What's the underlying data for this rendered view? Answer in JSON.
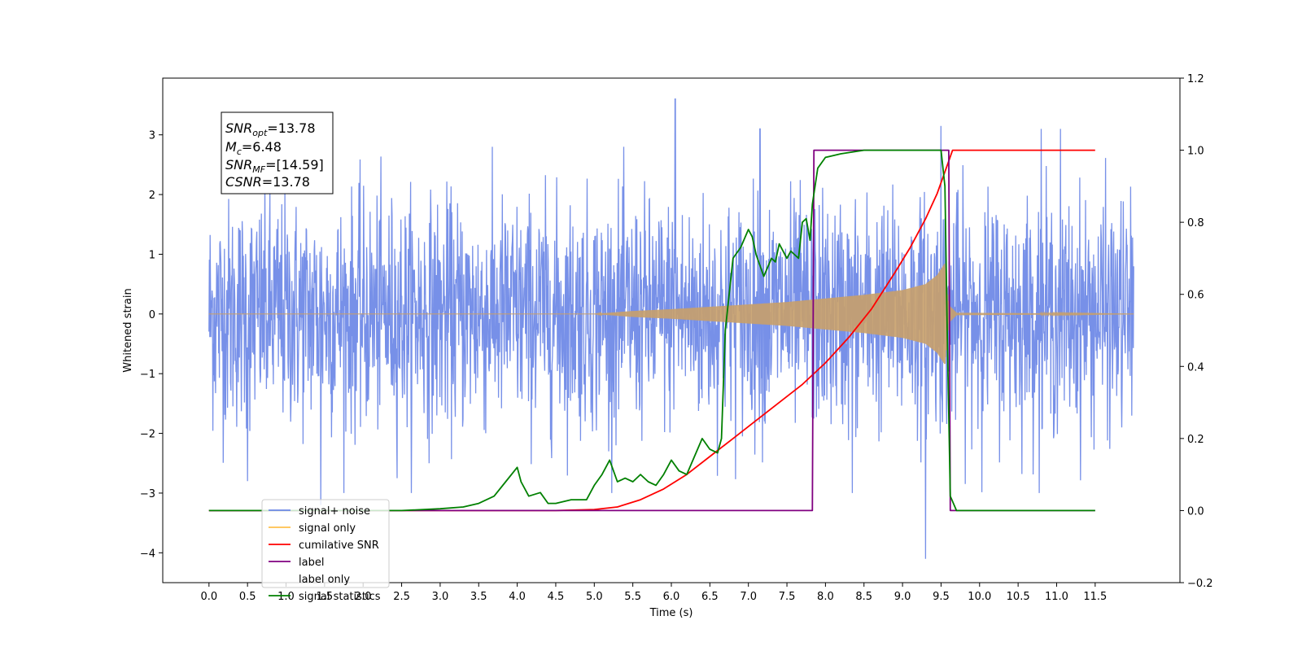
{
  "chart_data": {
    "type": "line",
    "xlabel": "Time (s)",
    "ylabel_left": "Whitened strain",
    "ylabel_right": "",
    "xlim": [
      -0.6,
      12.6
    ],
    "ylim_left": [
      -4.5,
      3.95
    ],
    "ylim_right": [
      -0.2,
      1.2
    ],
    "x_ticks": [
      "0.0",
      "0.5",
      "1.0",
      "1.5",
      "2.0",
      "2.5",
      "3.0",
      "3.5",
      "4.0",
      "4.5",
      "5.0",
      "5.5",
      "6.0",
      "6.5",
      "7.0",
      "7.5",
      "8.0",
      "8.5",
      "9.0",
      "9.5",
      "10.0",
      "10.5",
      "11.0",
      "11.5"
    ],
    "y_ticks_left": [
      "3",
      "2",
      "1",
      "0",
      "−1",
      "−2",
      "−3",
      "−4"
    ],
    "y_ticks_right": [
      "1.2",
      "1.0",
      "0.8",
      "0.6",
      "0.4",
      "0.2",
      "0.0",
      "−0.2"
    ],
    "grid": false,
    "legend_position": "bottom-left",
    "legend": [
      {
        "label": "signal+ noise",
        "color": "#6b87e6"
      },
      {
        "label": "signal only",
        "color": "#ffc04d"
      },
      {
        "label": "cumilative SNR",
        "color": "#ff0000"
      },
      {
        "label": "label",
        "color": "#800080"
      },
      {
        "label": "label only",
        "color": "#cccccc"
      },
      {
        "label": "signal statistics",
        "color": "#008000"
      }
    ],
    "annotation": {
      "snr_opt": {
        "base": "SNR",
        "sub": "opt",
        "value": "=13.78"
      },
      "mc": {
        "base": "M",
        "sub": "c",
        "value": "=6.48"
      },
      "snr_mf": {
        "base": "SNR",
        "sub": "MF",
        "value": "=[14.59]"
      },
      "csnr": {
        "base": "CSNR",
        "value": "=13.78"
      }
    },
    "series": [
      {
        "name": "signal+ noise",
        "axis": "left",
        "color": "#6b87e6",
        "kind": "noise",
        "x_range": [
          0.0,
          12.0
        ],
        "envelope_std": 0.95,
        "notable_spikes": [
          [
            6.05,
            3.6
          ],
          [
            9.3,
            -4.1
          ],
          [
            1.45,
            -3.2
          ],
          [
            7.15,
            3.1
          ],
          [
            9.5,
            3.15
          ],
          [
            10.8,
            3.1
          ],
          [
            11.05,
            3.1
          ],
          [
            0.5,
            -2.8
          ],
          [
            8.35,
            -3.0
          ]
        ]
      },
      {
        "name": "signal only",
        "axis": "left",
        "color": "#c8a06a",
        "kind": "chirp",
        "x_range": [
          0.0,
          12.0
        ],
        "amplitude_envelope": [
          [
            5.0,
            0.0
          ],
          [
            5.5,
            0.05
          ],
          [
            6.0,
            0.08
          ],
          [
            6.5,
            0.12
          ],
          [
            7.0,
            0.16
          ],
          [
            7.5,
            0.2
          ],
          [
            8.0,
            0.26
          ],
          [
            8.5,
            0.32
          ],
          [
            9.0,
            0.4
          ],
          [
            9.3,
            0.5
          ],
          [
            9.45,
            0.65
          ],
          [
            9.55,
            0.85
          ],
          [
            9.6,
            0.15
          ],
          [
            9.7,
            0.02
          ],
          [
            12.0,
            0.0
          ]
        ]
      },
      {
        "name": "cumilative SNR",
        "axis": "right",
        "color": "#ff0000",
        "x": [
          0.0,
          4.0,
          4.5,
          5.0,
          5.3,
          5.6,
          5.9,
          6.2,
          6.5,
          6.8,
          7.1,
          7.4,
          7.7,
          8.0,
          8.3,
          8.6,
          8.9,
          9.1,
          9.3,
          9.45,
          9.55,
          9.6,
          9.65,
          11.5
        ],
        "values": [
          0.0,
          0.0,
          0.0,
          0.003,
          0.01,
          0.03,
          0.06,
          0.1,
          0.15,
          0.2,
          0.25,
          0.3,
          0.35,
          0.41,
          0.48,
          0.56,
          0.66,
          0.73,
          0.81,
          0.88,
          0.94,
          0.97,
          1.0,
          1.0
        ]
      },
      {
        "name": "label",
        "axis": "right",
        "color": "#800080",
        "x": [
          0.0,
          7.83,
          7.85,
          9.6,
          9.62,
          11.5
        ],
        "values": [
          0.0,
          0.0,
          1.0,
          1.0,
          0.0,
          0.0
        ]
      },
      {
        "name": "signal statistics",
        "axis": "right",
        "color": "#008000",
        "x": [
          0.0,
          2.5,
          3.0,
          3.3,
          3.5,
          3.7,
          3.85,
          4.0,
          4.05,
          4.15,
          4.3,
          4.4,
          4.5,
          4.7,
          4.9,
          5.0,
          5.1,
          5.2,
          5.3,
          5.4,
          5.5,
          5.6,
          5.7,
          5.8,
          5.9,
          6.0,
          6.1,
          6.2,
          6.3,
          6.4,
          6.5,
          6.6,
          6.65,
          6.7,
          6.8,
          6.9,
          7.0,
          7.05,
          7.1,
          7.2,
          7.3,
          7.35,
          7.4,
          7.5,
          7.55,
          7.65,
          7.7,
          7.75,
          7.8,
          7.83,
          7.9,
          8.0,
          8.2,
          8.5,
          9.0,
          9.5,
          9.55,
          9.58,
          9.62,
          9.7,
          11.5
        ],
        "values": [
          0.0,
          0.0,
          0.005,
          0.01,
          0.02,
          0.04,
          0.08,
          0.12,
          0.08,
          0.04,
          0.05,
          0.02,
          0.02,
          0.03,
          0.03,
          0.07,
          0.1,
          0.14,
          0.08,
          0.09,
          0.08,
          0.1,
          0.08,
          0.07,
          0.1,
          0.14,
          0.11,
          0.1,
          0.15,
          0.2,
          0.17,
          0.16,
          0.2,
          0.5,
          0.7,
          0.73,
          0.78,
          0.76,
          0.71,
          0.65,
          0.7,
          0.69,
          0.74,
          0.7,
          0.72,
          0.7,
          0.8,
          0.81,
          0.75,
          0.85,
          0.95,
          0.98,
          0.99,
          1.0,
          1.0,
          1.0,
          0.9,
          0.5,
          0.04,
          0.0,
          0.0
        ]
      }
    ]
  }
}
